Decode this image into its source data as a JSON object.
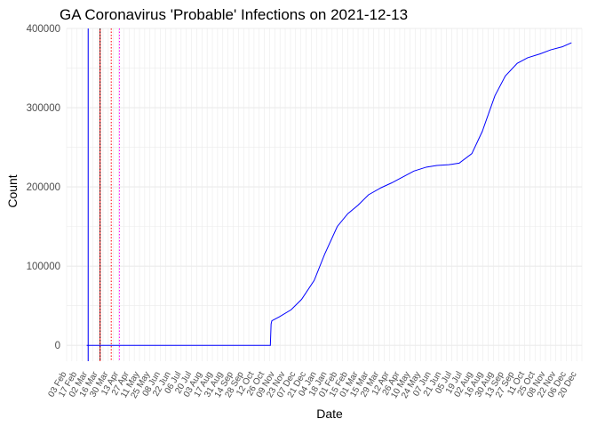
{
  "chart_data": {
    "type": "line",
    "title": "GA Coronavirus 'Probable' Infections on 2021-12-13",
    "xlabel": "Date",
    "ylabel": "Count",
    "x_type": "date",
    "xlim": [
      "2020-02-03",
      "2021-12-27"
    ],
    "ylim": [
      -20000,
      400000
    ],
    "yticks": [
      0,
      100000,
      200000,
      300000,
      400000
    ],
    "grid": true,
    "legend": "none",
    "series": [
      {
        "color": "#0000ff",
        "points": [
          [
            "2020-03-01",
            0
          ],
          [
            "2020-11-03",
            0
          ],
          [
            "2020-11-04",
            27000
          ],
          [
            "2020-11-05",
            31000
          ],
          [
            "2020-11-15",
            36000
          ],
          [
            "2020-12-01",
            45000
          ],
          [
            "2020-12-15",
            58000
          ],
          [
            "2021-01-01",
            82000
          ],
          [
            "2021-01-15",
            115000
          ],
          [
            "2021-02-01",
            150000
          ],
          [
            "2021-02-15",
            166000
          ],
          [
            "2021-03-01",
            177000
          ],
          [
            "2021-03-15",
            190000
          ],
          [
            "2021-04-01",
            199000
          ],
          [
            "2021-04-15",
            205000
          ],
          [
            "2021-05-01",
            213000
          ],
          [
            "2021-05-15",
            220000
          ],
          [
            "2021-06-01",
            225000
          ],
          [
            "2021-06-15",
            227000
          ],
          [
            "2021-07-01",
            228000
          ],
          [
            "2021-07-15",
            230000
          ],
          [
            "2021-08-01",
            242000
          ],
          [
            "2021-08-15",
            270000
          ],
          [
            "2021-09-01",
            315000
          ],
          [
            "2021-09-15",
            340000
          ],
          [
            "2021-10-01",
            356000
          ],
          [
            "2021-10-15",
            363000
          ],
          [
            "2021-11-01",
            368000
          ],
          [
            "2021-11-15",
            373000
          ],
          [
            "2021-12-01",
            377000
          ],
          [
            "2021-12-13",
            382000
          ]
        ]
      }
    ],
    "vlines": [
      {
        "x": "2020-03-03",
        "color": "#0000ff",
        "style": "solid"
      },
      {
        "x": "2020-03-19",
        "color": "#ff0000",
        "style": "solid"
      },
      {
        "x": "2020-03-19",
        "color": "#000000",
        "style": "dotted"
      },
      {
        "x": "2020-04-03",
        "color": "#ff0000",
        "style": "dotted"
      },
      {
        "x": "2020-04-14",
        "color": "#ff00ff",
        "style": "dotted"
      }
    ],
    "xticks": [
      "03 Feb",
      "17 Feb",
      "02 Mar",
      "16 Mar",
      "30 Mar",
      "13 Apr",
      "27 Apr",
      "11 May",
      "25 May",
      "08 Jun",
      "22 Jun",
      "06 Jul",
      "20 Jul",
      "03 Aug",
      "17 Aug",
      "31 Aug",
      "14 Sep",
      "28 Sep",
      "12 Oct",
      "26 Oct",
      "09 Nov",
      "23 Nov",
      "07 Dec",
      "21 Dec",
      "04 Jan",
      "18 Jan",
      "01 Feb",
      "15 Feb",
      "01 Mar",
      "15 Mar",
      "29 Mar",
      "12 Apr",
      "26 Apr",
      "10 May",
      "24 May",
      "07 Jun",
      "21 Jun",
      "05 Jul",
      "19 Jul",
      "02 Aug",
      "16 Aug",
      "30 Aug",
      "13 Sep",
      "27 Sep",
      "11 Oct",
      "25 Oct",
      "08 Nov",
      "22 Nov",
      "06 Dec",
      "20 Dec"
    ]
  }
}
